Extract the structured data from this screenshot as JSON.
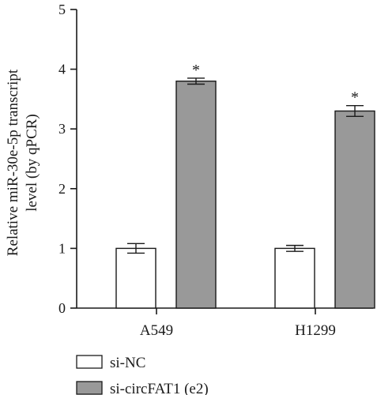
{
  "chart_data": {
    "type": "bar",
    "categories": [
      "A549",
      "H1299"
    ],
    "series": [
      {
        "name": "si-NC",
        "values": [
          1.0,
          1.0
        ],
        "errors": [
          0.08,
          0.05
        ],
        "color": "#ffffff"
      },
      {
        "name": "si-circFAT1 (e2)",
        "values": [
          3.8,
          3.3
        ],
        "errors": [
          0.05,
          0.09
        ],
        "color": "#999999"
      }
    ],
    "annotations": [
      {
        "series": 1,
        "category": 0,
        "text": "*"
      },
      {
        "series": 1,
        "category": 1,
        "text": "*"
      }
    ],
    "ylabel_lines": [
      "Relative miR-30e-5p transcript",
      "level (by qPCR)"
    ],
    "ylim": [
      0,
      5
    ],
    "yticks": [
      0,
      1,
      2,
      3,
      4,
      5
    ],
    "grid": false,
    "legend_position": "bottom-left"
  }
}
